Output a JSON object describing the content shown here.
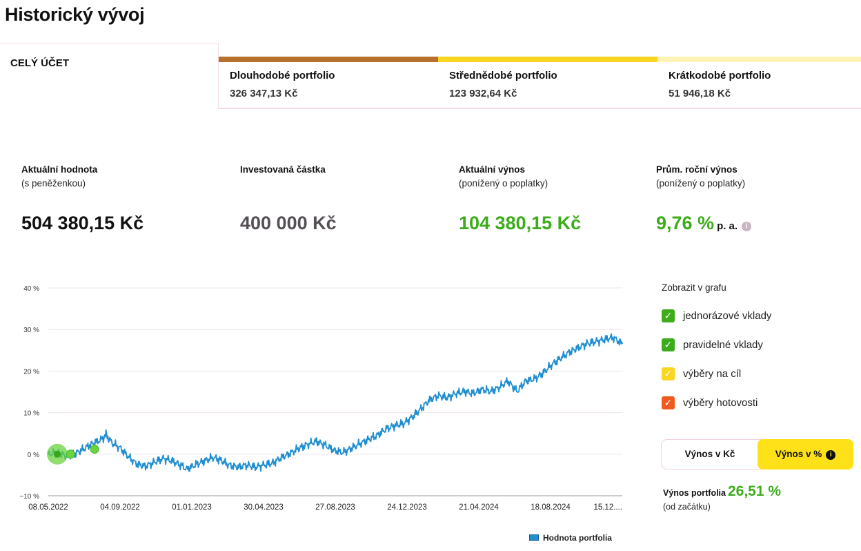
{
  "page": {
    "title": "Historický vývoj"
  },
  "tabs": {
    "whole_account": "CELÝ ÚČET",
    "portfolios": [
      {
        "name": "Dlouhodobé portfolio",
        "value": "326 347,13 Kč",
        "color": "#b8702d"
      },
      {
        "name": "Střednědobé portfolio",
        "value": "123 932,64 Kč",
        "color": "#fbd51e"
      },
      {
        "name": "Krátkodobé portfolio",
        "value": "51 946,18 Kč",
        "color": "#fdf3b5"
      }
    ]
  },
  "metrics": [
    {
      "title": "Aktuální hodnota",
      "sub": "(s peněženkou)",
      "value": "504 380,15 Kč",
      "color": "#111111"
    },
    {
      "title": "Investovaná částka",
      "sub": "",
      "value": "400 000 Kč",
      "color": "#555055"
    },
    {
      "title": "Aktuální výnos",
      "sub": "(ponížený o poplatky)",
      "value": "104 380,15 Kč",
      "color": "#3cac1a"
    },
    {
      "title": "Prům. roční výnos",
      "sub": "(ponížený o poplatky)",
      "value": "9,76 %",
      "value_suffix": "p. a.",
      "color": "#3cac1a"
    }
  ],
  "panel": {
    "title": "Zobrazit v grafu",
    "checkboxes": [
      {
        "label": "jednorázové vklady",
        "checked": true,
        "color": "#3cac1a"
      },
      {
        "label": "pravidelné vklady",
        "checked": true,
        "color": "#3cac1a"
      },
      {
        "label": "výběry na cíl",
        "checked": true,
        "color": "#fbd51e"
      },
      {
        "label": "výběry hotovosti",
        "checked": true,
        "color": "#f05a1e"
      }
    ],
    "toggle": {
      "left": "Výnos v Kč",
      "right": "Výnos v %",
      "selected": "right"
    },
    "yield_label": "Výnos portfolia",
    "yield_value": "26,51 %",
    "yield_sub": "(od začátku)"
  },
  "chart_data": {
    "type": "line",
    "ylim": [
      -10,
      40
    ],
    "y_ticks": [
      {
        "value": 40,
        "label": "40 %"
      },
      {
        "value": 30,
        "label": "30 %"
      },
      {
        "value": 20,
        "label": "20 %"
      },
      {
        "value": 10,
        "label": "10 %"
      },
      {
        "value": 0,
        "label": "0 %"
      },
      {
        "value": -10,
        "label": "−10 %"
      }
    ],
    "x_ticks": [
      "08.05.2022",
      "04.09.2022",
      "01.01.2023",
      "30.04.2023",
      "27.08.2023",
      "24.12.2023",
      "21.04.2024",
      "18.08.2024",
      "15.12...."
    ],
    "x_range": [
      "2022-05-08",
      "2025-02-05"
    ],
    "grid": true,
    "legend": "bottom-right",
    "series": [
      {
        "name": "Hodnota portfolia",
        "color": "#1f8ed1",
        "points": [
          [
            "2022-05-08",
            0.0
          ],
          [
            "2022-05-25",
            0.4
          ],
          [
            "2022-06-10",
            -0.6
          ],
          [
            "2022-06-25",
            0.2
          ],
          [
            "2022-07-10",
            1.4
          ],
          [
            "2022-07-25",
            2.6
          ],
          [
            "2022-08-10",
            3.6
          ],
          [
            "2022-08-17",
            4.7
          ],
          [
            "2022-08-28",
            2.6
          ],
          [
            "2022-09-10",
            1.6
          ],
          [
            "2022-09-25",
            -0.6
          ],
          [
            "2022-10-10",
            -2.4
          ],
          [
            "2022-10-25",
            -2.9
          ],
          [
            "2022-11-10",
            -1.9
          ],
          [
            "2022-11-25",
            -1.0
          ],
          [
            "2022-12-10",
            -1.6
          ],
          [
            "2022-12-25",
            -2.6
          ],
          [
            "2023-01-05",
            -3.6
          ],
          [
            "2023-01-20",
            -2.6
          ],
          [
            "2023-02-05",
            -1.6
          ],
          [
            "2023-02-20",
            -0.8
          ],
          [
            "2023-03-05",
            -1.4
          ],
          [
            "2023-03-20",
            -2.6
          ],
          [
            "2023-04-05",
            -3.1
          ],
          [
            "2023-04-20",
            -2.6
          ],
          [
            "2023-05-05",
            -3.1
          ],
          [
            "2023-05-20",
            -2.6
          ],
          [
            "2023-06-05",
            -2.1
          ],
          [
            "2023-06-20",
            -0.8
          ],
          [
            "2023-07-05",
            0.2
          ],
          [
            "2023-07-20",
            1.4
          ],
          [
            "2023-08-05",
            2.4
          ],
          [
            "2023-08-20",
            3.1
          ],
          [
            "2023-09-05",
            2.1
          ],
          [
            "2023-09-20",
            0.9
          ],
          [
            "2023-10-05",
            0.4
          ],
          [
            "2023-10-20",
            1.4
          ],
          [
            "2023-11-05",
            2.6
          ],
          [
            "2023-11-20",
            3.6
          ],
          [
            "2023-12-05",
            4.6
          ],
          [
            "2023-12-20",
            6.1
          ],
          [
            "2024-01-05",
            6.9
          ],
          [
            "2024-01-20",
            7.4
          ],
          [
            "2024-02-05",
            9.1
          ],
          [
            "2024-02-20",
            11.1
          ],
          [
            "2024-03-05",
            13.1
          ],
          [
            "2024-03-20",
            14.1
          ],
          [
            "2024-04-05",
            13.6
          ],
          [
            "2024-04-20",
            14.6
          ],
          [
            "2024-05-05",
            15.1
          ],
          [
            "2024-05-20",
            14.6
          ],
          [
            "2024-06-05",
            15.6
          ],
          [
            "2024-06-20",
            15.1
          ],
          [
            "2024-07-05",
            16.1
          ],
          [
            "2024-07-20",
            17.6
          ],
          [
            "2024-08-05",
            15.1
          ],
          [
            "2024-08-20",
            17.6
          ],
          [
            "2024-09-05",
            18.1
          ],
          [
            "2024-09-20",
            19.6
          ],
          [
            "2024-10-05",
            21.6
          ],
          [
            "2024-10-20",
            23.1
          ],
          [
            "2024-11-05",
            24.6
          ],
          [
            "2024-11-20",
            25.6
          ],
          [
            "2024-12-05",
            26.6
          ],
          [
            "2024-12-20",
            27.1
          ],
          [
            "2025-01-05",
            27.6
          ],
          [
            "2025-01-20",
            28.1
          ],
          [
            "2025-02-05",
            26.5
          ]
        ]
      }
    ],
    "markers": [
      {
        "x": "2022-05-08",
        "y": 0,
        "kind": "large",
        "color": "#6ad33f"
      },
      {
        "x": "2022-06-16",
        "y": 0,
        "kind": "small",
        "color": "#6ad33f"
      },
      {
        "x": "2022-07-28",
        "y": 1.2,
        "kind": "small",
        "color": "#6ad33f"
      }
    ]
  }
}
